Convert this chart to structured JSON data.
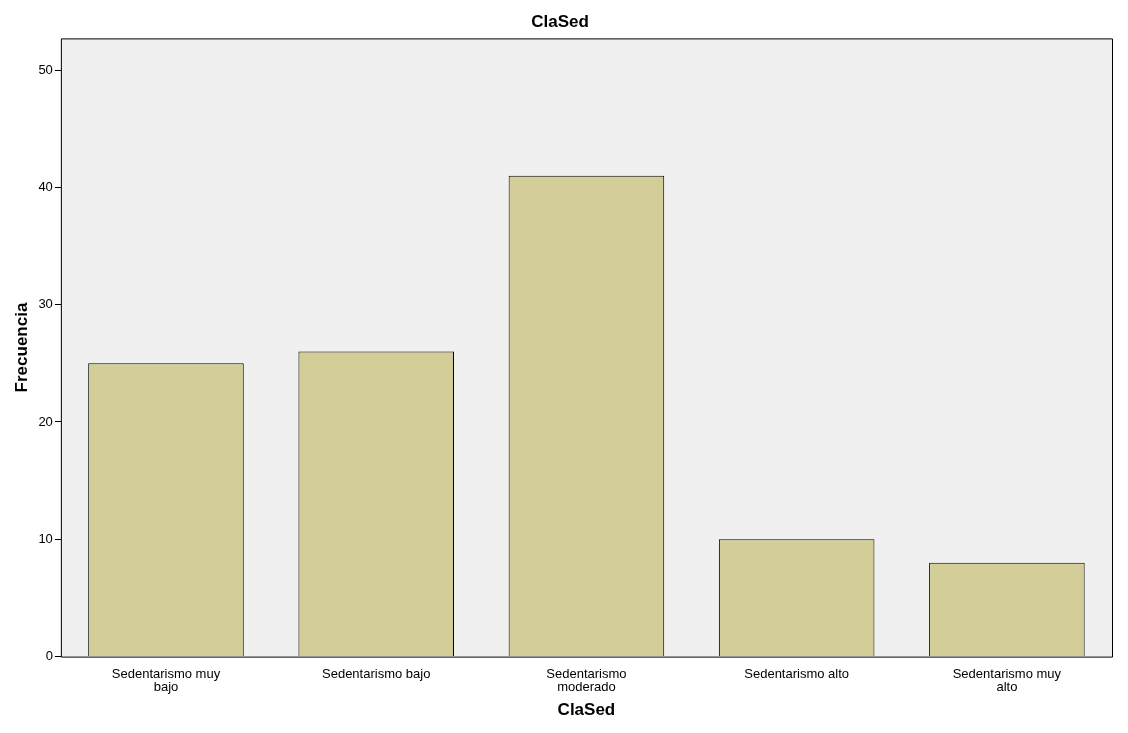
{
  "chart_data": {
    "type": "bar",
    "title": "ClaSed",
    "xlabel": "ClaSed",
    "ylabel": "Frecuencia",
    "categories": [
      "Sedentarismo muy bajo",
      "Sedentarismo bajo",
      "Sedentarismo moderado",
      "Sedentarismo alto",
      "Sedentarismo muy alto"
    ],
    "values": [
      25,
      26,
      41,
      10,
      8
    ],
    "color": "#d3ce97",
    "ylim": [
      0,
      52.7
    ],
    "yticks": [
      0,
      10,
      20,
      30,
      40,
      50
    ],
    "grid": false,
    "legend": false
  }
}
